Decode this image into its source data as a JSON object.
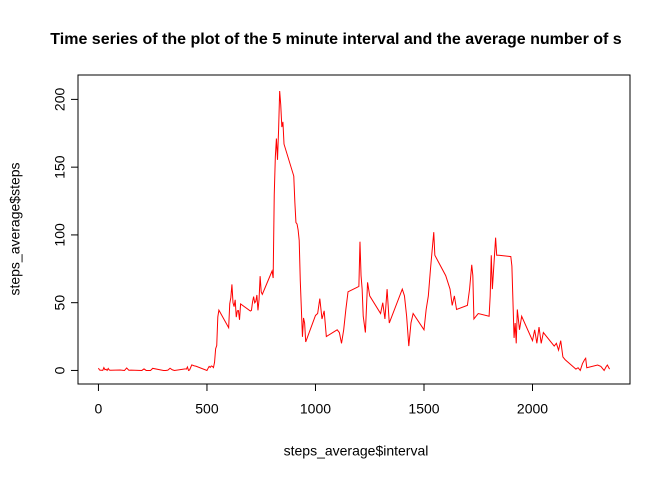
{
  "chart_data": {
    "type": "line",
    "title": "Time series of the plot of the 5 minute interval and the average number of s",
    "x_label": "steps_average$interval",
    "y_label": "steps_average$steps",
    "color": "#ff0000",
    "x": [
      0,
      5,
      10,
      15,
      20,
      25,
      30,
      35,
      40,
      45,
      50,
      55,
      100,
      110,
      120,
      130,
      140,
      150,
      200,
      210,
      220,
      230,
      240,
      250,
      300,
      310,
      320,
      330,
      340,
      350,
      400,
      405,
      410,
      415,
      420,
      430,
      440,
      450,
      500,
      505,
      510,
      515,
      520,
      525,
      530,
      535,
      540,
      545,
      550,
      555,
      600,
      605,
      610,
      615,
      620,
      625,
      630,
      635,
      640,
      645,
      650,
      655,
      700,
      705,
      710,
      715,
      720,
      725,
      730,
      735,
      740,
      745,
      750,
      755,
      800,
      805,
      810,
      815,
      820,
      825,
      830,
      835,
      840,
      845,
      850,
      855,
      900,
      905,
      910,
      915,
      920,
      925,
      930,
      935,
      940,
      945,
      950,
      955,
      1000,
      1010,
      1020,
      1030,
      1040,
      1050,
      1100,
      1110,
      1120,
      1130,
      1140,
      1150,
      1200,
      1205,
      1210,
      1215,
      1220,
      1230,
      1240,
      1250,
      1300,
      1310,
      1320,
      1330,
      1340,
      1400,
      1410,
      1420,
      1430,
      1440,
      1450,
      1500,
      1510,
      1520,
      1530,
      1545,
      1550,
      1600,
      1620,
      1630,
      1640,
      1650,
      1700,
      1710,
      1720,
      1725,
      1730,
      1740,
      1750,
      1800,
      1805,
      1810,
      1815,
      1830,
      1835,
      1845,
      1900,
      1905,
      1915,
      1920,
      1925,
      1930,
      1940,
      1950,
      2000,
      2010,
      2020,
      2030,
      2040,
      2050,
      2100,
      2110,
      2120,
      2130,
      2140,
      2150,
      2200,
      2210,
      2220,
      2230,
      2240,
      2245,
      2250,
      2300,
      2315,
      2330,
      2340,
      2345,
      2355
    ],
    "values": [
      1.72,
      0.34,
      0.13,
      0.15,
      0.08,
      2.09,
      0.53,
      0.87,
      0,
      1.47,
      0.3,
      0.13,
      0.32,
      0.15,
      0,
      1.83,
      0.17,
      0.26,
      0,
      1.13,
      0,
      0,
      0,
      1.55,
      0,
      0,
      0.21,
      1.62,
      0.49,
      0,
      1.19,
      0.94,
      2.57,
      0,
      0.34,
      4.11,
      3.49,
      3.11,
      0,
      1.57,
      3,
      2.25,
      3.32,
      2.96,
      2.09,
      6.06,
      16.02,
      18.34,
      39.45,
      44.49,
      31.49,
      49.26,
      53.77,
      63.45,
      49.96,
      47.08,
      52.15,
      39.34,
      44.02,
      44.17,
      37.36,
      49.04,
      43.81,
      44.38,
      50.51,
      54.51,
      49.92,
      50.98,
      55.68,
      44.32,
      52.26,
      69.55,
      57.85,
      56.15,
      73.38,
      68.21,
      129.43,
      157.53,
      171.15,
      155.4,
      177.3,
      206.17,
      195.92,
      179.57,
      183.4,
      167.02,
      143.45,
      124.04,
      109.11,
      108.11,
      103.72,
      95.97,
      66.21,
      45.23,
      24.79,
      38.75,
      34.98,
      21.06,
      40.57,
      42,
      53,
      38,
      44,
      25,
      30,
      28,
      20,
      30,
      45,
      58,
      62,
      95,
      70,
      60,
      40,
      28,
      65,
      55,
      42,
      50,
      38,
      60,
      35,
      60,
      55,
      40,
      18,
      35,
      42,
      30,
      45,
      55,
      75,
      102,
      85,
      70,
      60,
      48,
      55,
      45,
      48,
      60,
      78,
      70,
      38,
      40,
      42,
      40,
      55,
      85,
      60,
      98,
      85,
      85,
      84,
      77,
      24,
      35,
      20,
      45,
      30,
      40,
      22,
      30,
      20,
      32,
      20,
      28,
      18,
      20,
      15,
      22,
      10,
      8,
      1,
      2,
      0,
      5,
      8,
      9,
      2,
      4,
      3,
      0,
      3,
      4,
      1
    ],
    "xlim": [
      -94.2,
      2449.2
    ],
    "ylim": [
      -10,
      218
    ],
    "xticks": [
      0,
      500,
      1000,
      1500,
      2000
    ],
    "yticks": [
      0,
      50,
      100,
      150,
      200
    ]
  }
}
